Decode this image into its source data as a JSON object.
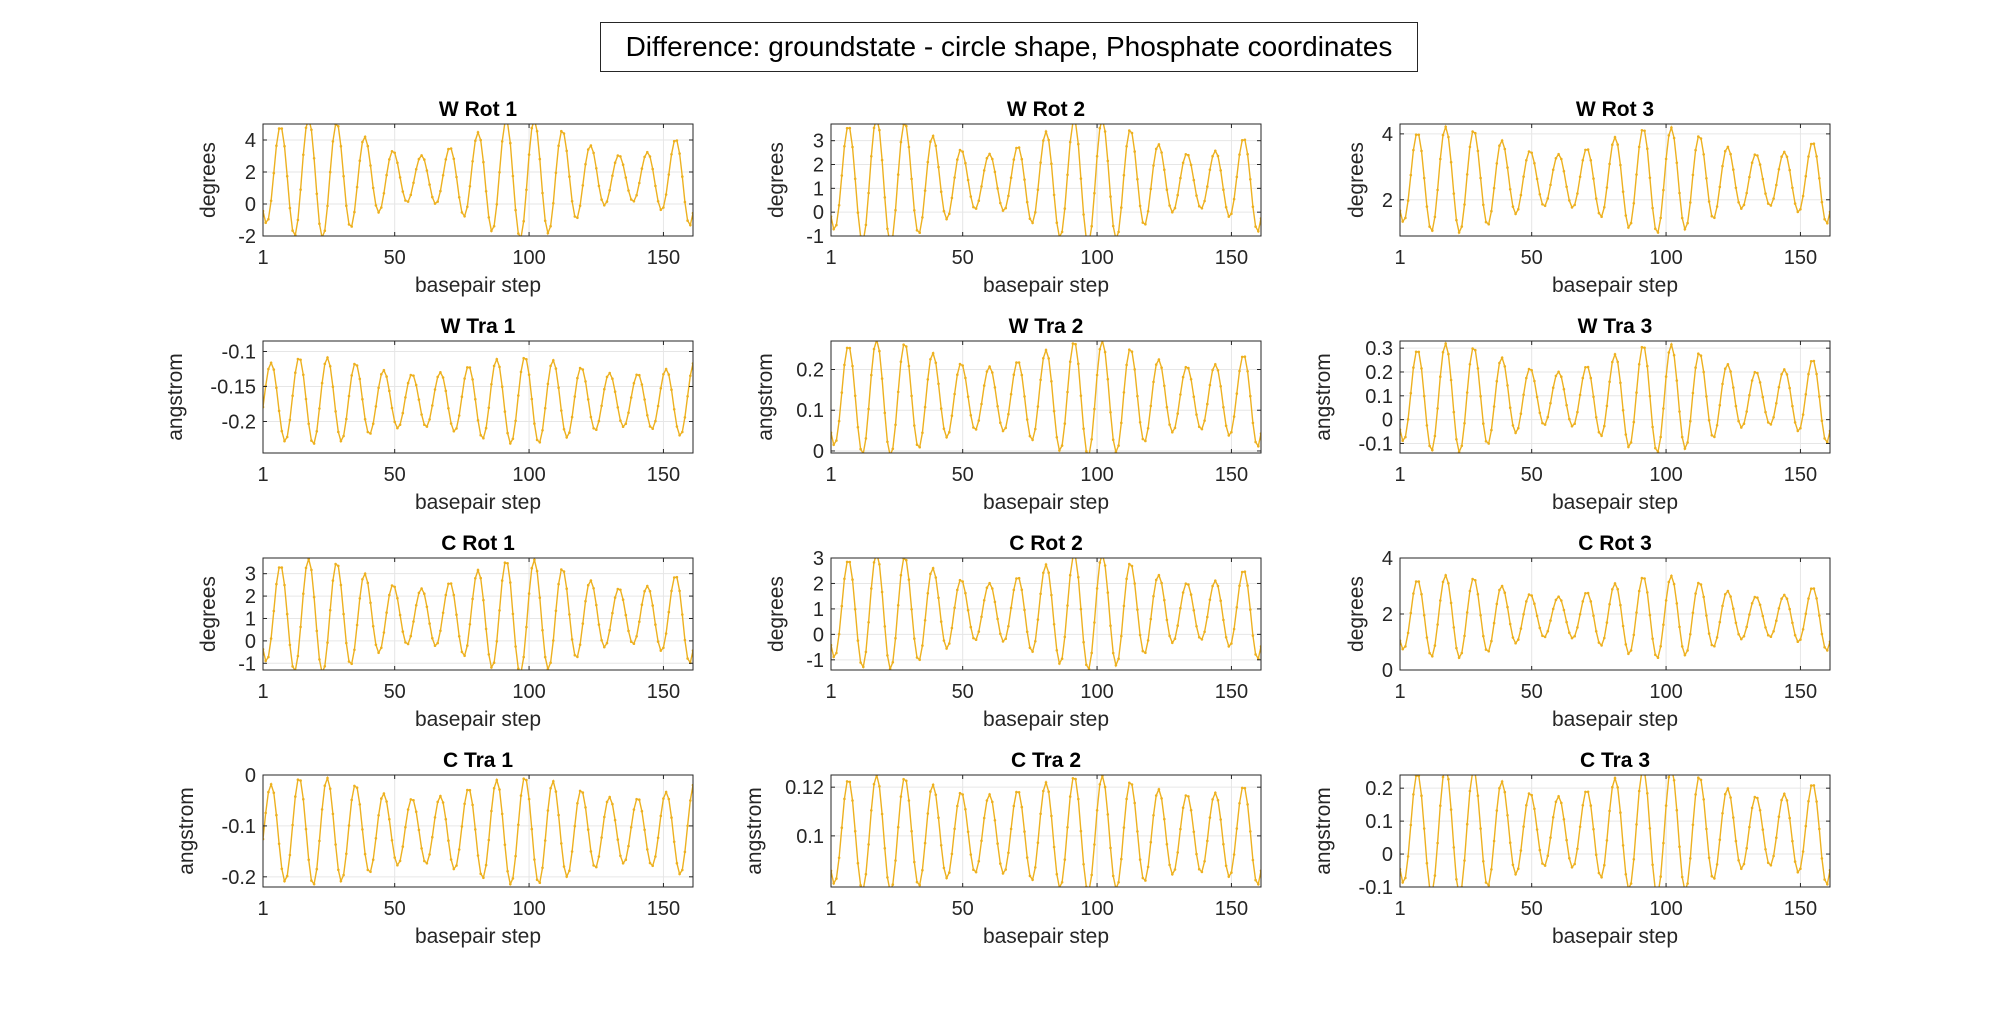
{
  "figure": {
    "title": "Difference: groundstate - circle shape, Phosphate coordinates",
    "line_color": "#EDB120"
  },
  "chart_data": [
    {
      "type": "line",
      "title": "W Rot 1",
      "xlabel": "basepair step",
      "ylabel": "degrees",
      "xlim": [
        1,
        161
      ],
      "ylim": [
        -2,
        5
      ],
      "yticks": [
        -2,
        0,
        2,
        4
      ],
      "xticks": [
        1,
        50,
        100,
        150
      ],
      "grid": true,
      "period": 10.5,
      "phase": 3.4,
      "mean": 1.6,
      "amp": 2.6,
      "amp_var": 0.45,
      "amp_period": 78
    },
    {
      "type": "line",
      "title": "W Rot 2",
      "xlabel": "basepair step",
      "ylabel": "degrees",
      "xlim": [
        1,
        161
      ],
      "ylim": [
        -1,
        3.7
      ],
      "yticks": [
        -1,
        0,
        1,
        2,
        3
      ],
      "xticks": [
        1,
        50,
        100,
        150
      ],
      "grid": true,
      "period": 10.5,
      "phase": 3.4,
      "mean": 1.3,
      "amp": 1.9,
      "amp_var": 0.4,
      "amp_period": 78
    },
    {
      "type": "line",
      "title": "W Rot 3",
      "xlabel": "basepair step",
      "ylabel": "degrees",
      "xlim": [
        1,
        161
      ],
      "ylim": [
        0.9,
        4.3
      ],
      "yticks": [
        2,
        4
      ],
      "xticks": [
        1,
        50,
        100,
        150
      ],
      "grid": true,
      "period": 10.5,
      "phase": 3.4,
      "mean": 2.6,
      "amp": 1.2,
      "amp_var": 0.35,
      "amp_period": 78
    },
    {
      "type": "line",
      "title": "W Tra 1",
      "xlabel": "basepair step",
      "ylabel": "angstrom",
      "xlim": [
        1,
        161
      ],
      "ylim": [
        -0.245,
        -0.085
      ],
      "yticks": [
        -0.2,
        -0.15,
        -0.1
      ],
      "xticks": [
        1,
        50,
        100,
        150
      ],
      "grid": true,
      "period": 10.5,
      "phase": 5.5,
      "mean": -0.17,
      "amp": 0.05,
      "amp_var": 0.25,
      "amp_period": 78
    },
    {
      "type": "line",
      "title": "W Tra 2",
      "xlabel": "basepair step",
      "ylabel": "angstrom",
      "xlim": [
        1,
        161
      ],
      "ylim": [
        -0.005,
        0.27
      ],
      "yticks": [
        0,
        0.1,
        0.2
      ],
      "xticks": [
        1,
        50,
        100,
        150
      ],
      "grid": true,
      "period": 10.5,
      "phase": 3.4,
      "mean": 0.13,
      "amp": 0.11,
      "amp_var": 0.3,
      "amp_period": 78
    },
    {
      "type": "line",
      "title": "W Tra 3",
      "xlabel": "basepair step",
      "ylabel": "angstrom",
      "xlim": [
        1,
        161
      ],
      "ylim": [
        -0.14,
        0.33
      ],
      "yticks": [
        -0.1,
        0,
        0.1,
        0.2,
        0.3
      ],
      "xticks": [
        1,
        50,
        100,
        150
      ],
      "grid": true,
      "period": 10.5,
      "phase": 3.4,
      "mean": 0.09,
      "amp": 0.17,
      "amp_var": 0.35,
      "amp_period": 78
    },
    {
      "type": "line",
      "title": "C Rot 1",
      "xlabel": "basepair step",
      "ylabel": "degrees",
      "xlim": [
        1,
        161
      ],
      "ylim": [
        -1.3,
        3.7
      ],
      "yticks": [
        -1,
        0,
        1,
        2,
        3
      ],
      "xticks": [
        1,
        50,
        100,
        150
      ],
      "grid": true,
      "period": 10.5,
      "phase": 3.4,
      "mean": 1.1,
      "amp": 1.9,
      "amp_var": 0.35,
      "amp_period": 78
    },
    {
      "type": "line",
      "title": "C Rot 2",
      "xlabel": "basepair step",
      "ylabel": "degrees",
      "xlim": [
        1,
        161
      ],
      "ylim": [
        -1.4,
        3
      ],
      "yticks": [
        -1,
        0,
        1,
        2,
        3
      ],
      "xticks": [
        1,
        50,
        100,
        150
      ],
      "grid": true,
      "period": 10.5,
      "phase": 3.4,
      "mean": 0.9,
      "amp": 1.7,
      "amp_var": 0.35,
      "amp_period": 78
    },
    {
      "type": "line",
      "title": "C Rot 3",
      "xlabel": "basepair step",
      "ylabel": "degrees",
      "xlim": [
        1,
        161
      ],
      "ylim": [
        0,
        4
      ],
      "yticks": [
        0,
        2,
        4
      ],
      "xticks": [
        1,
        50,
        100,
        150
      ],
      "grid": true,
      "period": 10.5,
      "phase": 3.4,
      "mean": 1.9,
      "amp": 1.1,
      "amp_var": 0.35,
      "amp_period": 78
    },
    {
      "type": "line",
      "title": "C Tra 1",
      "xlabel": "basepair step",
      "ylabel": "angstrom",
      "xlim": [
        1,
        161
      ],
      "ylim": [
        -0.22,
        0
      ],
      "yticks": [
        -0.2,
        -0.1,
        0
      ],
      "xticks": [
        1,
        50,
        100,
        150
      ],
      "grid": true,
      "period": 10.5,
      "phase": 5.5,
      "mean": -0.11,
      "amp": 0.085,
      "amp_var": 0.25,
      "amp_period": 78
    },
    {
      "type": "line",
      "title": "C Tra 2",
      "xlabel": "basepair step",
      "ylabel": "angstrom",
      "xlim": [
        1,
        161
      ],
      "ylim": [
        0.079,
        0.125
      ],
      "yticks": [
        0.1,
        0.12
      ],
      "xticks": [
        1,
        50,
        100,
        150
      ],
      "grid": true,
      "period": 10.5,
      "phase": 3.4,
      "mean": 0.101,
      "amp": 0.02,
      "amp_var": 0.2,
      "amp_period": 78
    },
    {
      "type": "line",
      "title": "C Tra 3",
      "xlabel": "basepair step",
      "ylabel": "angstrom",
      "xlim": [
        1,
        161
      ],
      "ylim": [
        -0.1,
        0.24
      ],
      "yticks": [
        -0.1,
        0,
        0.1,
        0.2
      ],
      "xticks": [
        1,
        50,
        100,
        150
      ],
      "grid": true,
      "period": 10.5,
      "phase": 3.4,
      "mean": 0.07,
      "amp": 0.15,
      "amp_var": 0.3,
      "amp_period": 78
    }
  ]
}
